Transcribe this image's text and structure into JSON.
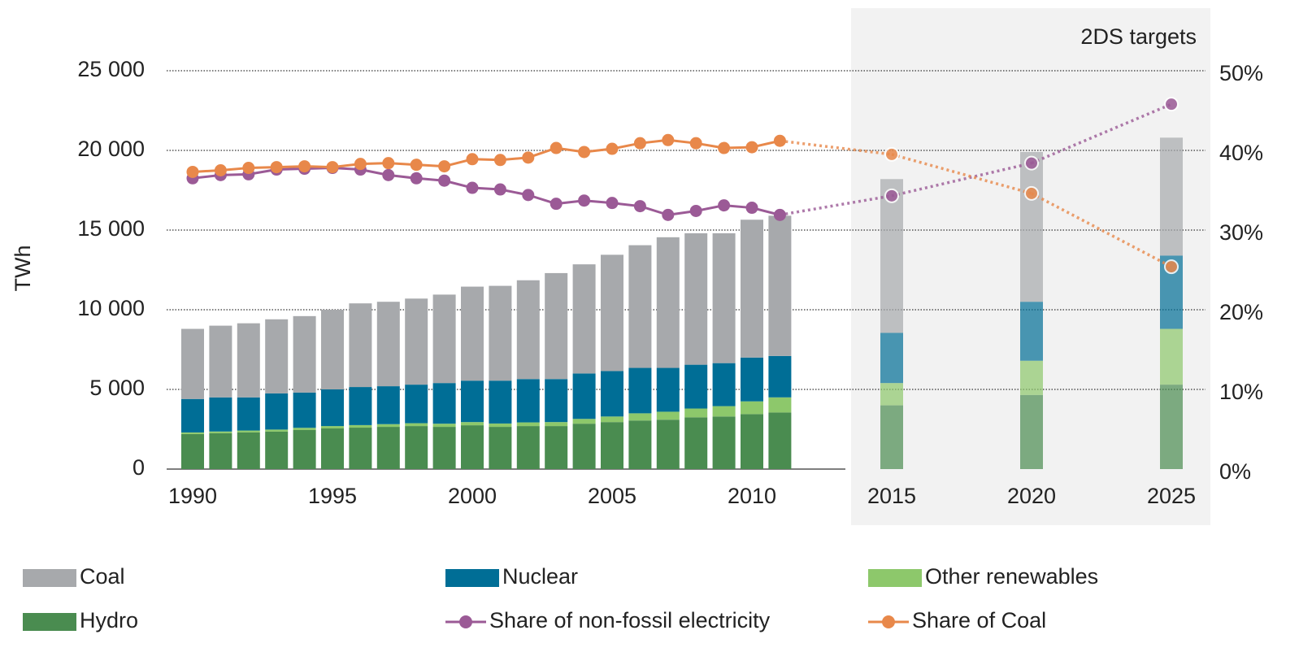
{
  "chart_data": {
    "type": "bar",
    "y_label": "TWh",
    "annotation": "2DS targets",
    "x": [
      1990,
      1991,
      1992,
      1993,
      1994,
      1995,
      1996,
      1997,
      1998,
      1999,
      2000,
      2001,
      2002,
      2003,
      2004,
      2005,
      2006,
      2007,
      2008,
      2009,
      2010,
      2011,
      2015,
      2020,
      2025
    ],
    "xticks": [
      1990,
      1995,
      2000,
      2005,
      2010,
      2015,
      2020,
      2025
    ],
    "ylim": [
      0,
      25000
    ],
    "yticks": [
      {
        "value": 0,
        "label": "0"
      },
      {
        "value": 5000,
        "label": "5 000"
      },
      {
        "value": 10000,
        "label": "10 000"
      },
      {
        "value": 15000,
        "label": "15 000"
      },
      {
        "value": 20000,
        "label": "20 000"
      },
      {
        "value": 25000,
        "label": "25 000"
      }
    ],
    "y2lim": [
      0,
      50
    ],
    "y2ticks": [
      {
        "value": 0,
        "label": "0%"
      },
      {
        "value": 10,
        "label": "10%"
      },
      {
        "value": 20,
        "label": "20%"
      },
      {
        "value": 30,
        "label": "30%"
      },
      {
        "value": 40,
        "label": "40%"
      },
      {
        "value": 50,
        "label": "50%"
      }
    ],
    "grid": true,
    "stacked": true,
    "series": [
      {
        "name": "Hydro",
        "type": "bar",
        "color": "#4a8c50",
        "values": [
          2200,
          2250,
          2300,
          2350,
          2450,
          2550,
          2600,
          2650,
          2700,
          2650,
          2750,
          2650,
          2700,
          2700,
          2850,
          2950,
          3050,
          3100,
          3250,
          3300,
          3450,
          3550,
          4000,
          4650,
          5300
        ]
      },
      {
        "name": "Other renewables",
        "type": "bar",
        "color": "#8dc86b",
        "values": [
          100,
          110,
          120,
          130,
          140,
          150,
          160,
          170,
          180,
          200,
          200,
          210,
          230,
          250,
          300,
          350,
          450,
          500,
          550,
          650,
          800,
          950,
          1400,
          2150,
          3500
        ]
      },
      {
        "name": "Nuclear",
        "type": "bar",
        "color": "#006e96",
        "values": [
          2100,
          2140,
          2080,
          2270,
          2210,
          2300,
          2390,
          2380,
          2420,
          2550,
          2600,
          2690,
          2720,
          2700,
          2850,
          2850,
          2850,
          2750,
          2750,
          2700,
          2750,
          2600,
          3150,
          3700,
          4600
        ]
      },
      {
        "name": "Coal",
        "type": "bar",
        "color": "#a7a9ac",
        "values": [
          4400,
          4500,
          4650,
          4650,
          4800,
          5000,
          5250,
          5300,
          5400,
          5550,
          5900,
          5950,
          6200,
          6650,
          6850,
          7300,
          7700,
          8200,
          8250,
          8150,
          8650,
          8800,
          9650,
          9400,
          7400
        ]
      },
      {
        "name": "Share of non-fossil electricity",
        "type": "line",
        "axis": "y2",
        "color": "#9b5a96",
        "values": [
          36.5,
          36.9,
          37.0,
          37.6,
          37.7,
          37.8,
          37.6,
          36.9,
          36.5,
          36.2,
          35.3,
          35.1,
          34.4,
          33.3,
          33.7,
          33.4,
          33.0,
          31.9,
          32.4,
          33.1,
          32.8,
          31.9,
          34.3,
          38.4,
          45.8
        ]
      },
      {
        "name": "Share of Coal",
        "type": "line",
        "axis": "y2",
        "color": "#e8884a",
        "values": [
          37.3,
          37.5,
          37.8,
          37.9,
          38.0,
          37.9,
          38.3,
          38.4,
          38.2,
          38.0,
          38.9,
          38.8,
          39.1,
          40.3,
          39.8,
          40.2,
          40.9,
          41.3,
          40.9,
          40.3,
          40.4,
          41.2,
          39.5,
          34.6,
          25.4
        ]
      }
    ]
  }
}
